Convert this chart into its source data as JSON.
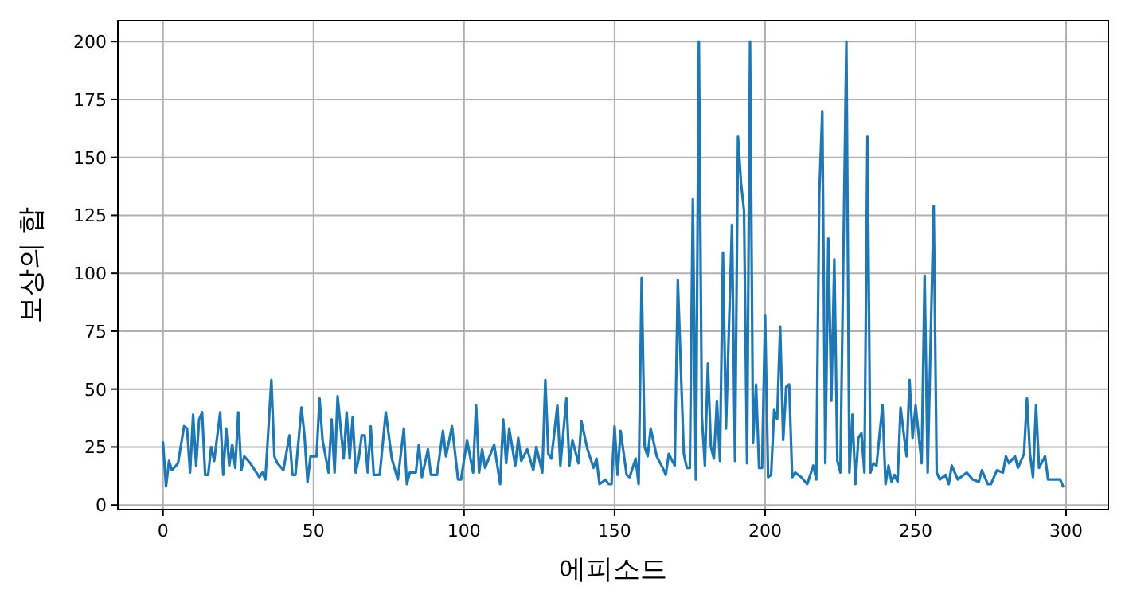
{
  "chart_data": {
    "type": "line",
    "xlabel": "에피소드",
    "ylabel": "보상의 합",
    "xlim": [
      -15,
      314
    ],
    "ylim": [
      -2,
      209
    ],
    "xticks": [
      0,
      50,
      100,
      150,
      200,
      250,
      300
    ],
    "yticks": [
      0,
      25,
      50,
      75,
      100,
      125,
      150,
      175,
      200
    ],
    "grid": true,
    "line_style": "solid",
    "marker": "none",
    "series": [
      {
        "color": "#1f77b4",
        "x": [
          0,
          1,
          2,
          3,
          5,
          7,
          8,
          9,
          10,
          11,
          12,
          13,
          14,
          15,
          16,
          17,
          19,
          20,
          21,
          22,
          23,
          24,
          25,
          26,
          27,
          29,
          31,
          32,
          33,
          34,
          36,
          37,
          38,
          40,
          42,
          43,
          44,
          46,
          47,
          48,
          49,
          51,
          52,
          53,
          55,
          56,
          57,
          58,
          60,
          61,
          62,
          63,
          64,
          65,
          66,
          67,
          68,
          69,
          70,
          72,
          74,
          76,
          78,
          80,
          81,
          82,
          84,
          85,
          86,
          88,
          89,
          91,
          93,
          94,
          96,
          98,
          99,
          101,
          103,
          104,
          105,
          106,
          107,
          110,
          112,
          113,
          114,
          115,
          117,
          118,
          119,
          121,
          123,
          124,
          126,
          127,
          128,
          129,
          131,
          132,
          134,
          135,
          136,
          138,
          139,
          141,
          143,
          144,
          145,
          147,
          148,
          149,
          150,
          151,
          152,
          154,
          155,
          157,
          158,
          159,
          160,
          161,
          162,
          164,
          166,
          167,
          168,
          170,
          171,
          173,
          174,
          175,
          176,
          177,
          178,
          179,
          180,
          181,
          182,
          183,
          184,
          185,
          186,
          187,
          189,
          190,
          191,
          192,
          193,
          194,
          195,
          196,
          197,
          198,
          199,
          200,
          201,
          202,
          203,
          204,
          205,
          206,
          207,
          208,
          209,
          210,
          212,
          214,
          216,
          217,
          218,
          219,
          220,
          221,
          222,
          223,
          224,
          225,
          227,
          228,
          229,
          230,
          231,
          232,
          233,
          234,
          235,
          236,
          237,
          239,
          240,
          241,
          242,
          243,
          244,
          245,
          247,
          248,
          249,
          250,
          252,
          253,
          254,
          256,
          257,
          258,
          260,
          261,
          262,
          264,
          265,
          267,
          269,
          271,
          272,
          274,
          275,
          277,
          279,
          280,
          281,
          283,
          284,
          286,
          287,
          288,
          289,
          290,
          291,
          293,
          294,
          296,
          298,
          299
        ],
        "values": [
          27,
          8,
          19,
          15,
          18,
          34,
          33,
          14,
          39,
          17,
          37,
          40,
          13,
          13,
          25,
          19,
          40,
          13,
          33,
          17,
          26,
          16,
          40,
          15,
          21,
          18,
          14,
          12,
          14,
          11,
          54,
          21,
          18,
          15,
          30,
          13,
          13,
          42,
          30,
          10,
          21,
          21,
          46,
          28,
          14,
          37,
          14,
          47,
          20,
          40,
          20,
          38,
          14,
          20,
          30,
          30,
          14,
          34,
          13,
          13,
          40,
          20,
          11,
          33,
          9,
          14,
          14,
          26,
          12,
          24,
          13,
          13,
          32,
          21,
          34,
          11,
          11,
          28,
          14,
          43,
          14,
          24,
          16,
          26,
          9,
          37,
          18,
          33,
          17,
          29,
          19,
          24,
          15,
          25,
          14,
          54,
          22,
          20,
          43,
          17,
          46,
          17,
          28,
          18,
          36,
          24,
          16,
          20,
          9,
          11,
          9,
          9,
          34,
          13,
          32,
          13,
          12,
          20,
          9,
          98,
          25,
          21,
          33,
          21,
          16,
          13,
          22,
          17,
          97,
          22,
          16,
          16,
          132,
          11,
          200,
          38,
          17,
          61,
          25,
          20,
          45,
          19,
          109,
          33,
          121,
          19,
          159,
          139,
          127,
          18,
          200,
          27,
          52,
          16,
          16,
          82,
          12,
          13,
          41,
          37,
          77,
          28,
          51,
          52,
          12,
          14,
          12,
          9,
          17,
          11,
          134,
          170,
          18,
          115,
          45,
          106,
          19,
          14,
          200,
          14,
          39,
          9,
          29,
          31,
          14,
          159,
          14,
          18,
          17,
          43,
          9,
          17,
          10,
          13,
          10,
          42,
          21,
          54,
          29,
          43,
          18,
          99,
          14,
          129,
          14,
          11,
          13,
          9,
          17,
          11,
          12,
          14,
          11,
          10,
          15,
          9,
          9,
          15,
          14,
          21,
          18,
          21,
          16,
          22,
          46,
          22,
          12,
          43,
          16,
          21,
          11,
          11,
          11,
          8
        ]
      }
    ]
  }
}
